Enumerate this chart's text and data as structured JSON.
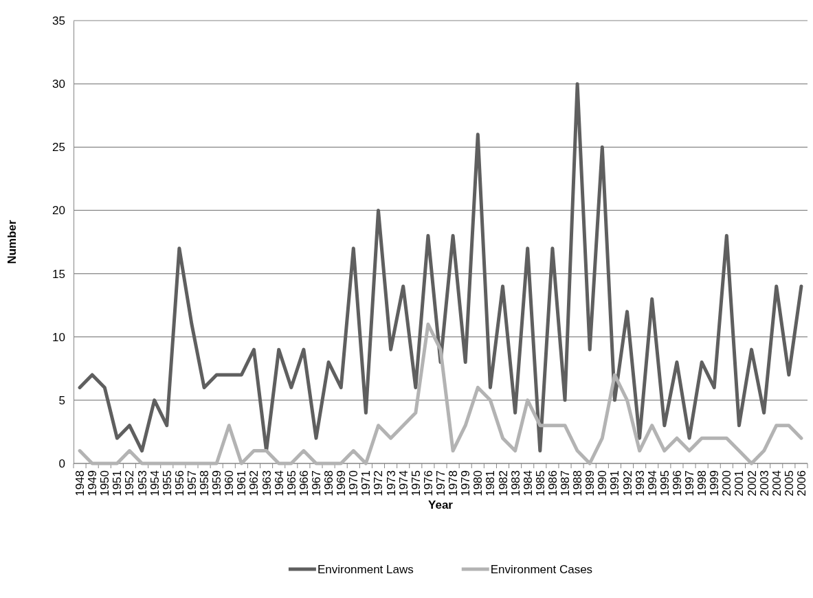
{
  "chart_data": {
    "type": "line",
    "xlabel": "Year",
    "ylabel": "Number",
    "categories": [
      "1948",
      "1949",
      "1950",
      "1951",
      "1952",
      "1953",
      "1954",
      "1955",
      "1956",
      "1957",
      "1958",
      "1959",
      "1960",
      "1961",
      "1962",
      "1963",
      "1964",
      "1965",
      "1966",
      "1967",
      "1968",
      "1969",
      "1970",
      "1971",
      "1972",
      "1973",
      "1974",
      "1975",
      "1976",
      "1977",
      "1978",
      "1979",
      "1980",
      "1981",
      "1982",
      "1983",
      "1984",
      "1985",
      "1986",
      "1987",
      "1988",
      "1989",
      "1990",
      "1991",
      "1992",
      "1993",
      "1994",
      "1995",
      "1996",
      "1997",
      "1998",
      "1999",
      "2000",
      "2001",
      "2002",
      "2003",
      "2004",
      "2005",
      "2006"
    ],
    "series": [
      {
        "name": "Environment Laws",
        "color": "#5f5f5f",
        "values": [
          6,
          7,
          6,
          2,
          3,
          1,
          5,
          3,
          17,
          11,
          6,
          7,
          7,
          7,
          9,
          1,
          9,
          6,
          9,
          2,
          8,
          6,
          17,
          4,
          20,
          9,
          14,
          6,
          18,
          8,
          18,
          8,
          26,
          6,
          14,
          4,
          17,
          1,
          17,
          5,
          30,
          9,
          25,
          5,
          12,
          2,
          13,
          3,
          8,
          2,
          8,
          6,
          18,
          3,
          9,
          4,
          14,
          7,
          14
        ]
      },
      {
        "name": "Environment Cases",
        "color": "#b3b3b3",
        "values": [
          1,
          0,
          0,
          0,
          1,
          0,
          0,
          0,
          0,
          0,
          0,
          0,
          3,
          0,
          1,
          1,
          0,
          0,
          1,
          0,
          0,
          0,
          1,
          0,
          3,
          2,
          3,
          4,
          11,
          9,
          1,
          3,
          6,
          5,
          2,
          1,
          5,
          3,
          3,
          3,
          1,
          0,
          2,
          7,
          5,
          1,
          3,
          1,
          2,
          1,
          2,
          2,
          2,
          1,
          0,
          1,
          3,
          3,
          2
        ]
      }
    ],
    "ylim": [
      0,
      35
    ],
    "yticks": [
      0,
      5,
      10,
      15,
      20,
      25,
      30,
      35
    ],
    "grid": "y",
    "legend": "bottom",
    "marker": "none",
    "line_style": "solid"
  }
}
